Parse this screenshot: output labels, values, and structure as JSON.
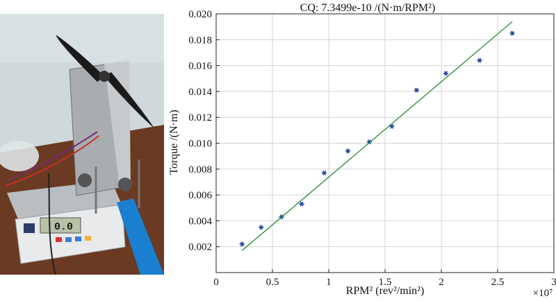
{
  "chart_data": {
    "type": "scatter",
    "title": "CQ: 7.3499e-10 /(N·m/RPM²)",
    "xlabel": "RPM² (rev²/min²)",
    "ylabel": "Torque /(N·m)",
    "x_multiplier": "×10⁷",
    "xlim": [
      0,
      3
    ],
    "ylim": [
      0,
      0.02
    ],
    "grid": true,
    "x_ticks": [
      "0",
      "0.5",
      "1",
      "1.5",
      "2",
      "2.5",
      "3"
    ],
    "y_ticks": [
      "0.002",
      "0.004",
      "0.006",
      "0.008",
      "0.010",
      "0.012",
      "0.014",
      "0.016",
      "0.018",
      "0.020"
    ],
    "series": [
      {
        "marker": "*",
        "color": "#1f3fa0",
        "points": [
          {
            "x": 0.23,
            "y": 0.0022
          },
          {
            "x": 0.4,
            "y": 0.0035
          },
          {
            "x": 0.58,
            "y": 0.0043
          },
          {
            "x": 0.76,
            "y": 0.0053
          },
          {
            "x": 0.96,
            "y": 0.0077
          },
          {
            "x": 1.17,
            "y": 0.0094
          },
          {
            "x": 1.36,
            "y": 0.0101
          },
          {
            "x": 1.56,
            "y": 0.0113
          },
          {
            "x": 1.78,
            "y": 0.0141
          },
          {
            "x": 2.04,
            "y": 0.0154
          },
          {
            "x": 2.34,
            "y": 0.0164
          },
          {
            "x": 2.63,
            "y": 0.0185
          }
        ]
      },
      {
        "type": "line",
        "color": "#1e8a2e",
        "points": [
          {
            "x": 0.23,
            "y": 0.0017
          },
          {
            "x": 2.63,
            "y": 0.0194
          }
        ]
      }
    ]
  },
  "photo": {
    "scale_display": "0.0",
    "wall_color": "#cfd9dc",
    "table_color": "#6b3a22",
    "blue_pipe_color": "#1a7fd0"
  }
}
